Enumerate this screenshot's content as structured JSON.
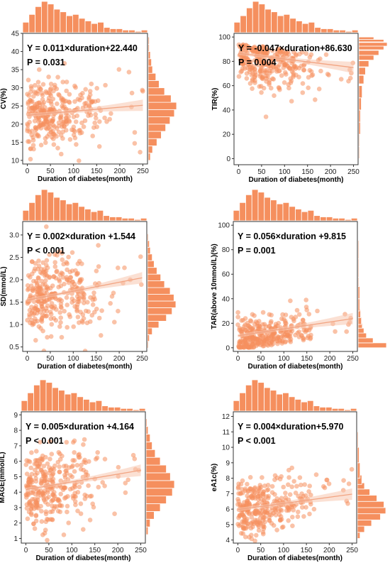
{
  "style": {
    "point_color": "#f58f5e",
    "bar_color": "#f58f5e",
    "line_color": "#f2a482",
    "band_color": "#f7c7ae"
  },
  "chart_data": [
    {
      "type": "scatter",
      "xlabel": "Duration of diabetes(month)",
      "ylabel": "CV(%)",
      "xlim": [
        -10,
        260
      ],
      "ylim": [
        9,
        45
      ],
      "xticks": [
        0,
        50,
        100,
        150,
        200,
        250
      ],
      "yticks": [
        10,
        15,
        20,
        25,
        30,
        35,
        40,
        45
      ],
      "equation": "Y = 0.011×duration+22.440",
      "p_value": "P = 0.031",
      "regression": {
        "slope": 0.011,
        "intercept": 22.44
      },
      "x_hist": [
        8,
        14,
        20,
        24,
        22,
        18,
        16,
        13,
        14,
        11,
        9,
        7,
        8,
        4,
        3,
        3,
        2,
        2,
        1,
        2
      ],
      "y_hist_bins": [
        11,
        13,
        15,
        17,
        19,
        21,
        23,
        25,
        27,
        29,
        31,
        33,
        35,
        37,
        39,
        41,
        43
      ],
      "y_hist_counts": [
        2,
        4,
        8,
        12,
        16,
        20,
        24,
        26,
        21,
        15,
        10,
        7,
        4,
        3,
        2,
        1,
        1
      ]
    },
    {
      "type": "scatter",
      "xlabel": "Duration of diabetes(month)",
      "ylabel": "TIR(%)",
      "xlim": [
        -10,
        260
      ],
      "ylim": [
        -5,
        103
      ],
      "xticks": [
        0,
        50,
        100,
        150,
        200,
        250
      ],
      "yticks": [
        0,
        20,
        40,
        60,
        80,
        100
      ],
      "equation": "Y = -0.047×duration+86.630",
      "p_value": "P = 0.004",
      "regression": {
        "slope": -0.047,
        "intercept": 86.63
      },
      "x_hist": [
        8,
        13,
        19,
        24,
        22,
        18,
        16,
        13,
        14,
        11,
        9,
        7,
        8,
        4,
        3,
        3,
        2,
        2,
        1,
        2
      ],
      "y_hist_bins": [
        5,
        15,
        25,
        35,
        45,
        55,
        65,
        72,
        78,
        83,
        87,
        91,
        94,
        97,
        99
      ],
      "y_hist_counts": [
        1,
        1,
        2,
        2,
        3,
        4,
        6,
        8,
        12,
        18,
        24,
        30,
        34,
        30,
        18
      ]
    },
    {
      "type": "scatter",
      "xlabel": "Duration of diabetes(month)",
      "ylabel": "SD(mmol/L)",
      "xlim": [
        -10,
        260
      ],
      "ylim": [
        0.4,
        3.3
      ],
      "xticks": [
        0,
        50,
        100,
        150,
        200,
        250
      ],
      "yticks": [
        0.5,
        1.0,
        1.5,
        2.0,
        2.5,
        3.0
      ],
      "equation": "Y = 0.002×duration +1.544",
      "p_value": "P < 0.001",
      "regression": {
        "slope": 0.002,
        "intercept": 1.544
      },
      "x_hist": [
        8,
        14,
        20,
        24,
        22,
        18,
        16,
        13,
        14,
        11,
        9,
        7,
        8,
        4,
        3,
        3,
        2,
        2,
        1,
        2
      ],
      "y_hist_bins": [
        0.55,
        0.7,
        0.85,
        1.0,
        1.15,
        1.3,
        1.45,
        1.6,
        1.75,
        1.9,
        2.05,
        2.2,
        2.35,
        2.5,
        2.65,
        2.8,
        2.95
      ],
      "y_hist_counts": [
        1,
        2,
        5,
        12,
        20,
        26,
        30,
        28,
        24,
        18,
        14,
        10,
        7,
        5,
        3,
        2,
        1
      ]
    },
    {
      "type": "scatter",
      "xlabel": "Duration of diabetes(month)",
      "ylabel": "TAR(above 10mmol/L)(%)",
      "xlim": [
        -10,
        260
      ],
      "ylim": [
        -3,
        103
      ],
      "xticks": [
        0,
        50,
        100,
        150,
        200,
        250
      ],
      "yticks": [
        0,
        20,
        40,
        60,
        80,
        100
      ],
      "equation": "Y = 0.056×duration +9.815",
      "p_value": "P = 0.001",
      "regression": {
        "slope": 0.056,
        "intercept": 9.815
      },
      "x_hist": [
        8,
        14,
        20,
        24,
        22,
        18,
        16,
        13,
        14,
        11,
        9,
        7,
        8,
        4,
        3,
        3,
        2,
        2,
        1,
        2
      ],
      "y_hist_bins": [
        2,
        6,
        10,
        14,
        18,
        22,
        28,
        35,
        45,
        55,
        65,
        80
      ],
      "y_hist_counts": [
        34,
        18,
        10,
        7,
        5,
        4,
        3,
        2,
        2,
        1,
        1,
        1
      ]
    },
    {
      "type": "scatter",
      "xlabel": "Duration of diabetes(month)",
      "ylabel": "MAGE(mmol/L)",
      "xlim": [
        -10,
        260
      ],
      "ylim": [
        0.7,
        9.2
      ],
      "xticks": [
        0,
        50,
        100,
        150,
        200,
        250
      ],
      "yticks": [
        1,
        2,
        3,
        4,
        5,
        6,
        7,
        8,
        9
      ],
      "equation": "Y = 0.005×duration +4.164",
      "p_value": "P < 0.001",
      "regression": {
        "slope": 0.005,
        "intercept": 4.164
      },
      "x_hist": [
        8,
        14,
        20,
        24,
        22,
        18,
        16,
        13,
        14,
        11,
        9,
        7,
        8,
        4,
        3,
        3,
        2,
        2,
        1,
        2
      ],
      "y_hist_bins": [
        1.5,
        2.0,
        2.5,
        3.0,
        3.5,
        4.0,
        4.5,
        5.0,
        5.5,
        6.0,
        6.5,
        7.0,
        7.5,
        8.0,
        8.5
      ],
      "y_hist_counts": [
        2,
        4,
        8,
        14,
        20,
        26,
        28,
        24,
        20,
        14,
        9,
        6,
        4,
        2,
        1
      ]
    },
    {
      "type": "scatter",
      "xlabel": "Duration of diabetes(month)",
      "ylabel": "eA1c(%)",
      "xlim": [
        -10,
        260
      ],
      "ylim": [
        3.8,
        12.3
      ],
      "xticks": [
        0,
        50,
        100,
        150,
        200,
        250
      ],
      "yticks": [
        4,
        5,
        6,
        7,
        8,
        9,
        10,
        11,
        12
      ],
      "equation": "Y = 0.004×duration+5.970",
      "p_value": "P < 0.001",
      "regression": {
        "slope": 0.004,
        "intercept": 5.97
      },
      "x_hist": [
        8,
        14,
        20,
        24,
        22,
        18,
        16,
        13,
        14,
        11,
        9,
        7,
        8,
        4,
        3,
        3,
        2,
        2,
        1,
        2
      ],
      "y_hist_bins": [
        4.3,
        4.7,
        5.1,
        5.5,
        5.9,
        6.3,
        6.7,
        7.1,
        7.5,
        7.9,
        8.5,
        9.5,
        10.5
      ],
      "y_hist_counts": [
        3,
        8,
        16,
        26,
        32,
        30,
        22,
        14,
        8,
        5,
        3,
        2,
        1
      ]
    }
  ]
}
